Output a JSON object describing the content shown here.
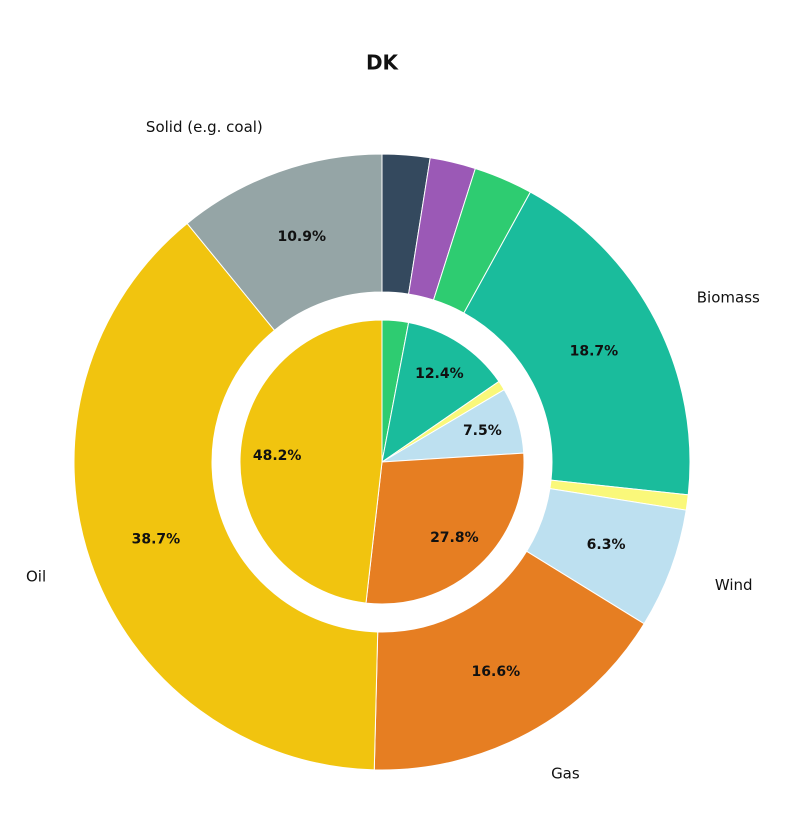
{
  "chart_data": {
    "type": "nested-pie",
    "title": "DK",
    "rings": [
      {
        "categories": [
          null,
          null,
          null,
          "Biomass",
          null,
          "Wind",
          "Gas",
          "Oil",
          "Solid (e.g. coal)"
        ],
        "values": [
          2.5,
          2.4,
          3.1,
          18.7,
          0.8,
          6.3,
          16.6,
          38.7,
          10.9
        ],
        "value_labels": [
          null,
          null,
          null,
          "18.7%",
          null,
          "6.3%",
          "16.6%",
          "38.7%",
          "10.9%"
        ],
        "colors": [
          "#34495e",
          "#9b59b6",
          "#2ecc71",
          "#1abc9c",
          "#faf87a",
          "#bde0f0",
          "#e67e22",
          "#f1c40f",
          "#95a5a6"
        ]
      },
      {
        "values": [
          3.0,
          12.4,
          1.1,
          7.5,
          27.8,
          48.2
        ],
        "value_labels": [
          null,
          "12.4%",
          null,
          "7.5%",
          "27.8%",
          "48.2%"
        ],
        "colors": [
          "#2ecc71",
          "#1abc9c",
          "#faf87a",
          "#bde0f0",
          "#e67e22",
          "#f1c40f"
        ]
      }
    ]
  }
}
